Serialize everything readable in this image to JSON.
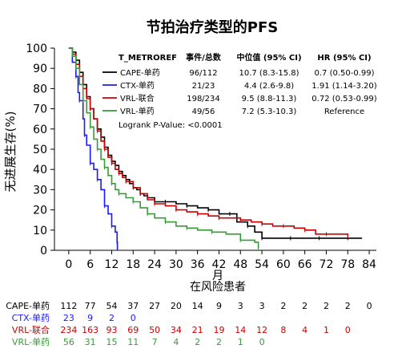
{
  "chart_data": {
    "type": "line",
    "title": "节拍治疗类型的PFS",
    "ylabel": "无进展生存(%)",
    "xlabel_top": "月",
    "xlabel_bottom": "在风险患者",
    "xlim": [
      -4,
      86
    ],
    "ylim": [
      0,
      100
    ],
    "x_ticks": [
      "0",
      "6",
      "12",
      "18",
      "24",
      "30",
      "36",
      "42",
      "48",
      "54",
      "60",
      "66",
      "72",
      "78",
      "84"
    ],
    "y_ticks": [
      "0",
      "10",
      "20",
      "30",
      "40",
      "50",
      "60",
      "70",
      "80",
      "90",
      "100"
    ],
    "grid": false,
    "legend": {
      "headers": [
        "T_METROREF",
        "事件/总数",
        "中位值 (95% CI)",
        "HR (95% CI)"
      ],
      "rows": [
        {
          "name": "CAPE-单药",
          "color": "#000000",
          "events": "96/112",
          "median": "10.7 (8.3-15.8)",
          "hr": "0.7 (0.50-0.99)"
        },
        {
          "name": "CTX-单药",
          "color": "#1a1aff",
          "events": "21/23",
          "median": "4.4 (2.6-9.8)",
          "hr": "1.91 (1.14-3.20)"
        },
        {
          "name": "VRL-联合",
          "color": "#cc0000",
          "events": "198/234",
          "median": "9.5 (8.8-11.3)",
          "hr": "0.72 (0.53-0.99)"
        },
        {
          "name": "VRL-单药",
          "color": "#3a9a3a",
          "events": "49/56",
          "median": "7.2 (5.3-10.3)",
          "hr": "Reference"
        }
      ],
      "logrank": "Logrank P-Value: <0.0001"
    },
    "series": [
      {
        "name": "CAPE-单药",
        "color": "#000000",
        "points": [
          [
            0,
            100
          ],
          [
            1,
            98
          ],
          [
            2,
            94
          ],
          [
            3,
            88
          ],
          [
            4,
            82
          ],
          [
            5,
            76
          ],
          [
            6,
            70
          ],
          [
            7,
            65
          ],
          [
            8,
            60
          ],
          [
            9,
            56
          ],
          [
            10,
            51
          ],
          [
            11,
            47
          ],
          [
            12,
            44
          ],
          [
            13,
            42
          ],
          [
            14,
            39
          ],
          [
            15,
            37
          ],
          [
            16,
            35
          ],
          [
            17,
            33
          ],
          [
            18,
            31
          ],
          [
            19,
            30
          ],
          [
            20,
            28
          ],
          [
            21,
            27
          ],
          [
            22,
            26
          ],
          [
            24,
            24
          ],
          [
            27,
            24
          ],
          [
            30,
            23
          ],
          [
            33,
            22
          ],
          [
            36,
            21
          ],
          [
            39,
            20
          ],
          [
            42,
            18
          ],
          [
            45,
            18
          ],
          [
            47,
            14
          ],
          [
            50,
            12
          ],
          [
            52,
            9
          ],
          [
            54,
            6
          ],
          [
            58,
            6
          ],
          [
            62,
            6
          ],
          [
            66,
            6
          ],
          [
            70,
            6
          ],
          [
            74,
            6
          ],
          [
            78,
            6
          ],
          [
            82,
            6
          ]
        ]
      },
      {
        "name": "CTX-单药",
        "color": "#1a1aff",
        "points": [
          [
            0,
            100
          ],
          [
            1,
            93
          ],
          [
            2,
            86
          ],
          [
            2.6,
            78
          ],
          [
            3,
            74
          ],
          [
            4,
            65
          ],
          [
            4.4,
            57
          ],
          [
            5,
            52
          ],
          [
            6,
            43
          ],
          [
            7,
            40
          ],
          [
            8,
            35
          ],
          [
            9,
            30
          ],
          [
            10,
            22
          ],
          [
            11,
            18
          ],
          [
            12,
            12
          ],
          [
            13,
            9
          ],
          [
            13.5,
            4
          ],
          [
            13.6,
            0
          ]
        ]
      },
      {
        "name": "VRL-联合",
        "color": "#cc0000",
        "points": [
          [
            0,
            100
          ],
          [
            1,
            97
          ],
          [
            2,
            92
          ],
          [
            3,
            86
          ],
          [
            4,
            80
          ],
          [
            5,
            75
          ],
          [
            6,
            70
          ],
          [
            7,
            65
          ],
          [
            8,
            59
          ],
          [
            9,
            54
          ],
          [
            10,
            50
          ],
          [
            11,
            46
          ],
          [
            12,
            43
          ],
          [
            13,
            40
          ],
          [
            14,
            38
          ],
          [
            15,
            36
          ],
          [
            16,
            34
          ],
          [
            18,
            31
          ],
          [
            20,
            28
          ],
          [
            22,
            25
          ],
          [
            24,
            23
          ],
          [
            27,
            22
          ],
          [
            30,
            20
          ],
          [
            33,
            19
          ],
          [
            36,
            18
          ],
          [
            39,
            17
          ],
          [
            42,
            16
          ],
          [
            45,
            16
          ],
          [
            48,
            15
          ],
          [
            51,
            14
          ],
          [
            54,
            13
          ],
          [
            57,
            12
          ],
          [
            60,
            12
          ],
          [
            63,
            11
          ],
          [
            66,
            10
          ],
          [
            69,
            8
          ],
          [
            72,
            8
          ],
          [
            75,
            8
          ],
          [
            78,
            7
          ]
        ]
      },
      {
        "name": "VRL-单药",
        "color": "#3a9a3a",
        "points": [
          [
            0,
            100
          ],
          [
            1,
            96
          ],
          [
            2,
            90
          ],
          [
            3,
            82
          ],
          [
            4,
            74
          ],
          [
            5,
            68
          ],
          [
            6,
            61
          ],
          [
            7,
            55
          ],
          [
            8,
            50
          ],
          [
            9,
            45
          ],
          [
            10,
            41
          ],
          [
            11,
            37
          ],
          [
            12,
            33
          ],
          [
            13,
            30
          ],
          [
            14,
            28
          ],
          [
            16,
            26
          ],
          [
            18,
            24
          ],
          [
            20,
            21
          ],
          [
            22,
            18
          ],
          [
            24,
            16
          ],
          [
            27,
            14
          ],
          [
            30,
            12
          ],
          [
            33,
            11
          ],
          [
            36,
            10
          ],
          [
            40,
            9
          ],
          [
            44,
            8
          ],
          [
            48,
            5
          ],
          [
            52,
            4
          ],
          [
            53,
            1
          ]
        ]
      }
    ],
    "at_risk": {
      "x": [
        0,
        6,
        12,
        18,
        24,
        30,
        36,
        42,
        48,
        54,
        60,
        66,
        72,
        78,
        84
      ],
      "rows": [
        {
          "label": "CAPE-单药",
          "color": "#000000",
          "values": [
            "112",
            "77",
            "54",
            "37",
            "27",
            "20",
            "14",
            "9",
            "3",
            "3",
            "2",
            "2",
            "2",
            "2",
            "0"
          ]
        },
        {
          "label": "CTX-单药",
          "color": "#1a1aff",
          "values": [
            "23",
            "9",
            "2",
            "0"
          ]
        },
        {
          "label": "VRL-联合",
          "color": "#cc0000",
          "values": [
            "234",
            "163",
            "93",
            "69",
            "50",
            "34",
            "21",
            "19",
            "14",
            "12",
            "8",
            "4",
            "1",
            "0"
          ]
        },
        {
          "label": "VRL-单药",
          "color": "#3a9a3a",
          "values": [
            "56",
            "31",
            "15",
            "11",
            "7",
            "4",
            "2",
            "2",
            "1",
            "0"
          ]
        }
      ]
    }
  }
}
